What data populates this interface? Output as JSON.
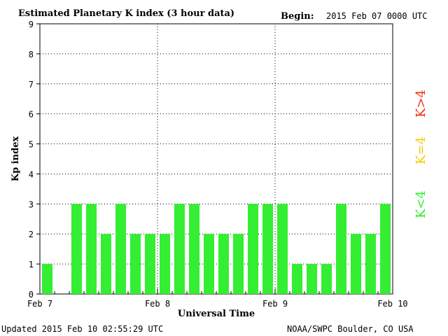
{
  "header": {
    "title": "Estimated Planetary K index (3 hour data)",
    "begin_label": "Begin:",
    "begin_value": "2015 Feb 07 0000 UTC"
  },
  "footer": {
    "updated": "Updated 2015 Feb 10 02:55:29 UTC",
    "source": "NOAA/SWPC Boulder, CO USA"
  },
  "legend": {
    "above": "K>4",
    "equal": "K=4",
    "below": "K<4"
  },
  "colors": {
    "below": "#33ee33",
    "equal": "#f5cc00",
    "above": "#ee3311"
  },
  "chart_data": {
    "type": "bar",
    "xlabel": "Universal Time",
    "ylabel": "Kp index",
    "ylim": [
      0,
      9
    ],
    "yticks": [
      "0",
      "1",
      "2",
      "3",
      "4",
      "5",
      "6",
      "7",
      "8",
      "9"
    ],
    "day_labels": [
      "Feb 7",
      "Feb 8",
      "Feb 9",
      "Feb 10"
    ],
    "grid": true,
    "bars_per_day": 8,
    "values": [
      1,
      0,
      3,
      3,
      2,
      3,
      2,
      2,
      2,
      3,
      3,
      2,
      2,
      2,
      3,
      3,
      3,
      1,
      1,
      1,
      3,
      2,
      2,
      3
    ]
  }
}
